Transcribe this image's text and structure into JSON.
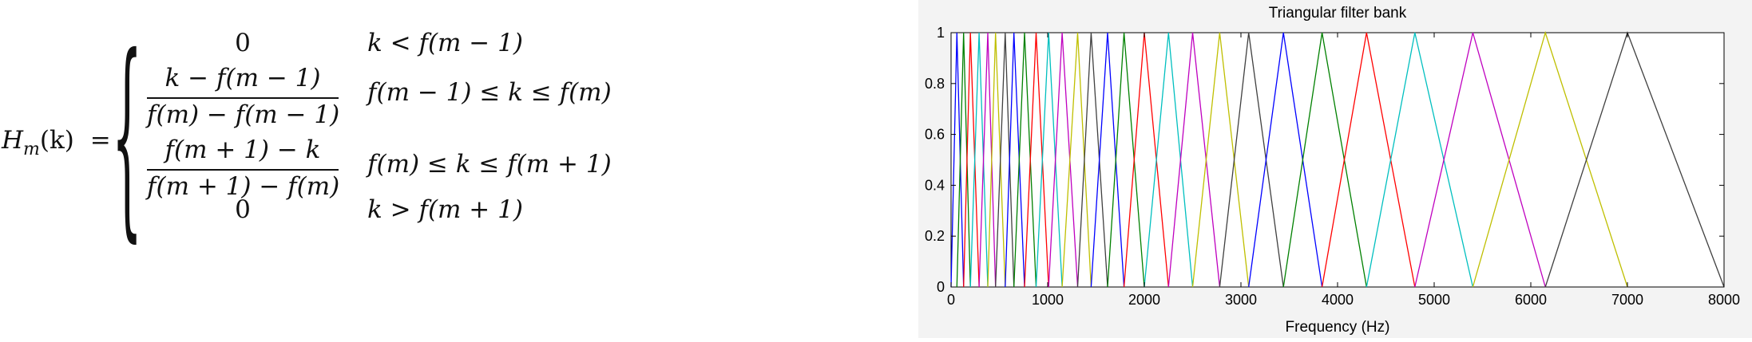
{
  "formula": {
    "lhs_symbol": "H",
    "lhs_sub": "m",
    "lhs_arg": "(k)",
    "eq": "=",
    "case1_value": "0",
    "case1_cond": "k < f(m − 1)",
    "case2_num": "k − f(m − 1)",
    "case2_den": "f(m) − f(m − 1)",
    "case2_cond": "f(m − 1) ≤ k ≤ f(m)",
    "case3_num": "f(m + 1) − k",
    "case3_den": "f(m + 1) − f(m)",
    "case3_cond": "f(m) ≤ k ≤ f(m + 1)",
    "case4_value": "0",
    "case4_cond": "k > f(m + 1)"
  },
  "chart_data": {
    "type": "line",
    "title": "Triangular filter bank",
    "xlabel": "Frequency (Hz)",
    "ylabel": "",
    "xlim": [
      0,
      8000
    ],
    "ylim": [
      0,
      1
    ],
    "xticks": [
      0,
      1000,
      2000,
      3000,
      4000,
      5000,
      6000,
      7000,
      8000
    ],
    "yticks": [
      0,
      0.2,
      0.4,
      0.6,
      0.8,
      1
    ],
    "xtick_labels": [
      "0",
      "1000",
      "2000",
      "3000",
      "4000",
      "5000",
      "6000",
      "7000",
      "8000"
    ],
    "ytick_labels": [
      "0",
      "0.2",
      "0.4",
      "0.6",
      "0.8",
      "1"
    ],
    "grid": false,
    "center_frequencies": [
      0,
      60,
      130,
      200,
      290,
      380,
      460,
      560,
      650,
      760,
      880,
      1010,
      1150,
      1310,
      1450,
      1620,
      1790,
      2000,
      2250,
      2500,
      2780,
      3080,
      3440,
      3840,
      4300,
      4800,
      5400,
      6150,
      7000,
      8000
    ],
    "colors": [
      "#0000ff",
      "#008000",
      "#ff0000",
      "#00bfbf",
      "#bf00bf",
      "#bfbf00",
      "#404040"
    ],
    "series_peak": 1
  }
}
